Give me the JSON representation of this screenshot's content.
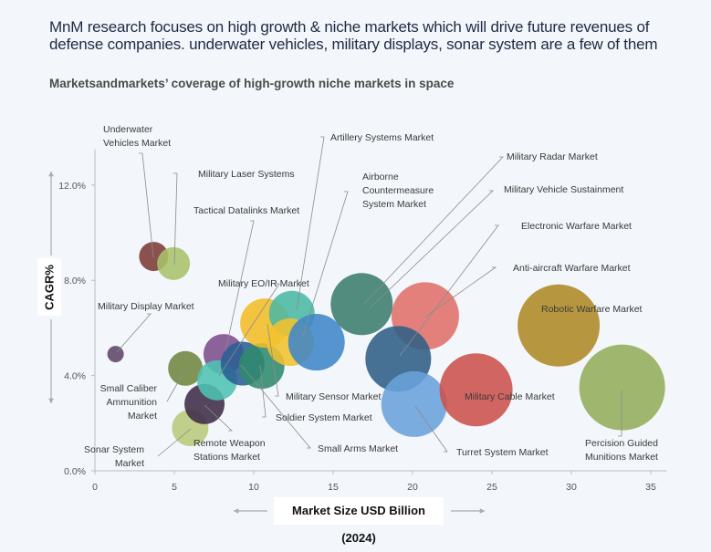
{
  "header": {
    "title": "MnM research focuses on high growth & niche markets which will drive future revenues of defense companies. underwater vehicles, military displays, sonar system are a few of them",
    "subtitle": "Marketsandmarkets’ coverage of high-growth niche markets in space"
  },
  "chart_data": {
    "type": "scatter",
    "subtype": "bubble",
    "title": "Marketsandmarkets’ coverage of high-growth niche markets in space",
    "xlabel": "Market Size USD Billion (2024)",
    "ylabel": "CAGR%",
    "xlim": [
      0,
      36
    ],
    "ylim": [
      0,
      13.5
    ],
    "x_ticks": [
      "0",
      "5",
      "10",
      "15",
      "20",
      "25",
      "30",
      "35"
    ],
    "x_tick_values": [
      0,
      5,
      10,
      15,
      20,
      25,
      30,
      35
    ],
    "y_ticks": [
      "0.0%",
      "4.0%",
      "8.0%",
      "12.0%"
    ],
    "y_tick_values": [
      0,
      4,
      8,
      12
    ],
    "grid": false,
    "legend": "none",
    "bubbles": [
      {
        "name": "Underwater Vehicles Market",
        "x": 3.7,
        "y": 9.0,
        "size": 16,
        "color": "#7b3a35"
      },
      {
        "name": "Military Laser Systems",
        "x": 4.95,
        "y": 8.7,
        "size": 18,
        "color": "#a9c26a"
      },
      {
        "name": "Military Display Market",
        "x": 1.3,
        "y": 4.9,
        "size": 9,
        "color": "#5e4566"
      },
      {
        "name": "Small Caliber Ammunition Market",
        "x": 5.7,
        "y": 4.3,
        "size": 19,
        "color": "#6f8640"
      },
      {
        "name": "Sonar System Market",
        "x": 6.0,
        "y": 1.8,
        "size": 20,
        "color": "#b8ca7a"
      },
      {
        "name": "Remote Weapon Stations Market",
        "x": 6.9,
        "y": 2.8,
        "size": 22,
        "color": "#3f2b48"
      },
      {
        "name": "Tactical Datalinks Market",
        "x": 8.1,
        "y": 4.9,
        "size": 22,
        "color": "#7c4d8c"
      },
      {
        "name": "Military EO/IR Market",
        "x": 7.7,
        "y": 3.8,
        "size": 22,
        "color": "#4ec3b2"
      },
      {
        "name": "Small Arms Market",
        "x": 9.3,
        "y": 4.5,
        "size": 24,
        "color": "#2a5f94"
      },
      {
        "name": "Soldier System Market",
        "x": 10.5,
        "y": 4.4,
        "size": 25,
        "color": "#2f8a6c"
      },
      {
        "name": "Military Sensor Market",
        "x": 10.7,
        "y": 6.2,
        "size": 27,
        "color": "#f2bd24"
      },
      {
        "name": "Artillery Systems Market",
        "x": 12.4,
        "y": 6.6,
        "size": 25,
        "color": "#4bb8a3"
      },
      {
        "name": "Airborne Countermeasure System Market",
        "x": 12.3,
        "y": 5.4,
        "size": 26,
        "color": "#f3c22e"
      },
      {
        "name": "Military Radar Market",
        "x": 13.95,
        "y": 5.4,
        "size": 31,
        "color": "#3f86c8"
      },
      {
        "name": "Military Vehicle Sustainment",
        "x": 16.8,
        "y": 7.0,
        "size": 34,
        "color": "#3a7d6c"
      },
      {
        "name": "Anti-aircraft Warfare Market",
        "x": 20.8,
        "y": 6.5,
        "size": 37,
        "color": "#e0706a"
      },
      {
        "name": "Electronic Warfare Market",
        "x": 19.1,
        "y": 4.7,
        "size": 36,
        "color": "#2e5f86"
      },
      {
        "name": "Turret System Market",
        "x": 20.1,
        "y": 2.8,
        "size": 36,
        "color": "#6aa2db"
      },
      {
        "name": "Military Cable Market",
        "x": 24.0,
        "y": 3.4,
        "size": 40,
        "color": "#cc514c"
      },
      {
        "name": "Robotic Warfare Market",
        "x": 29.2,
        "y": 6.1,
        "size": 45,
        "color": "#ad8a26"
      },
      {
        "name": "Percision Guided Munitions Market",
        "x": 33.2,
        "y": 3.5,
        "size": 47,
        "color": "#92ad5a"
      }
    ],
    "annotations": [
      {
        "text": [
          "Underwater",
          "Vehicles Market"
        ],
        "bubble": 0,
        "anchor": "start"
      },
      {
        "text": [
          "Military Laser Systems"
        ],
        "bubble": 1,
        "anchor": "start"
      },
      {
        "text": [
          "Tactical Datalinks Market"
        ],
        "bubble": 6,
        "anchor": "start"
      },
      {
        "text": [
          "Artillery Systems Market"
        ],
        "bubble": 11,
        "anchor": "start"
      },
      {
        "text": [
          "Airborne",
          "Countermeasure",
          "System Market"
        ],
        "bubble": 12,
        "anchor": "start"
      },
      {
        "text": [
          "Military Radar Market"
        ],
        "bubble": 13,
        "anchor": "start"
      },
      {
        "text": [
          "Military Vehicle Sustainment"
        ],
        "bubble": 14,
        "anchor": "start"
      },
      {
        "text": [
          "Electronic Warfare Market"
        ],
        "bubble": 16,
        "anchor": "start"
      },
      {
        "text": [
          "Anti-aircraft Warfare Market"
        ],
        "bubble": 15,
        "anchor": "start"
      },
      {
        "text": [
          "Robotic Warfare Market"
        ],
        "bubble": 19,
        "anchor": "start"
      },
      {
        "text": [
          "Military EO/IR Market"
        ],
        "bubble": 7,
        "anchor": "start"
      },
      {
        "text": [
          "Military Display Market"
        ],
        "bubble": 2,
        "anchor": "start"
      },
      {
        "text": [
          "Small Caliber",
          "Ammunition",
          "Market"
        ],
        "bubble": 3,
        "anchor": "end"
      },
      {
        "text": [
          "Sonar System",
          "Market"
        ],
        "bubble": 4,
        "anchor": "end"
      },
      {
        "text": [
          "Remote Weapon",
          "Stations Market"
        ],
        "bubble": 5,
        "anchor": "start"
      },
      {
        "text": [
          "Military Sensor Market"
        ],
        "bubble": 10,
        "anchor": "start"
      },
      {
        "text": [
          "Soldier System Market"
        ],
        "bubble": 9,
        "anchor": "start"
      },
      {
        "text": [
          "Small Arms Market"
        ],
        "bubble": 8,
        "anchor": "start"
      },
      {
        "text": [
          "Military Cable Market"
        ],
        "bubble": 18,
        "anchor": "start"
      },
      {
        "text": [
          "Turret System Market"
        ],
        "bubble": 17,
        "anchor": "start"
      },
      {
        "text": [
          "Percision Guided",
          "Munitions Market"
        ],
        "bubble": 20,
        "anchor": "middle"
      }
    ]
  },
  "colors": {
    "background": "#f3f6fa",
    "axis": "#b8bcc4",
    "leader": "#8c8c8c",
    "arrow": "#a7abb2"
  }
}
